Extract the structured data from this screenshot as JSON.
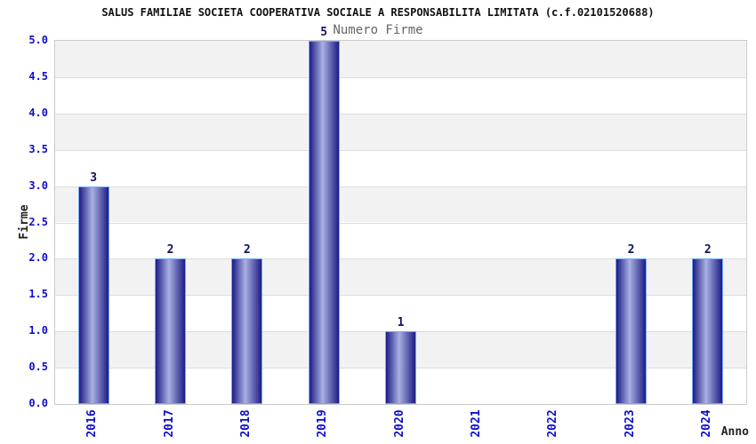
{
  "chart_data": {
    "type": "bar",
    "title": "SALUS FAMILIAE SOCIETA COOPERATIVA SOCIALE A RESPONSABILITA LIMITATA (c.f.02101520688)",
    "legend": "Numero Firme",
    "legend_position": "top",
    "xlabel": "Anno",
    "ylabel": "Firme",
    "categories": [
      "2016",
      "2017",
      "2018",
      "2019",
      "2020",
      "2021",
      "2022",
      "2023",
      "2024"
    ],
    "values": [
      3,
      2,
      2,
      5,
      1,
      0,
      0,
      2,
      2
    ],
    "ylim": [
      0,
      5
    ],
    "ytick_step": 0.5,
    "yticks": [
      "0.0",
      "0.5",
      "1.0",
      "1.5",
      "2.0",
      "2.5",
      "3.0",
      "3.5",
      "4.0",
      "4.5",
      "5.0"
    ],
    "grid": true,
    "banded_background": true,
    "colors": {
      "bar_dark": "#1c1c85",
      "bar_light": "#a9b0e2",
      "bar_border": "#74aaf2",
      "axis_tick_label": "#0e0ecc",
      "value_label": "#12125e",
      "band_alt": "#f2f2f2",
      "gridline": "#dddddd",
      "plot_border": "#cccccc",
      "title": "#111111",
      "legend_text": "#666666",
      "axis_title": "#222222"
    }
  }
}
